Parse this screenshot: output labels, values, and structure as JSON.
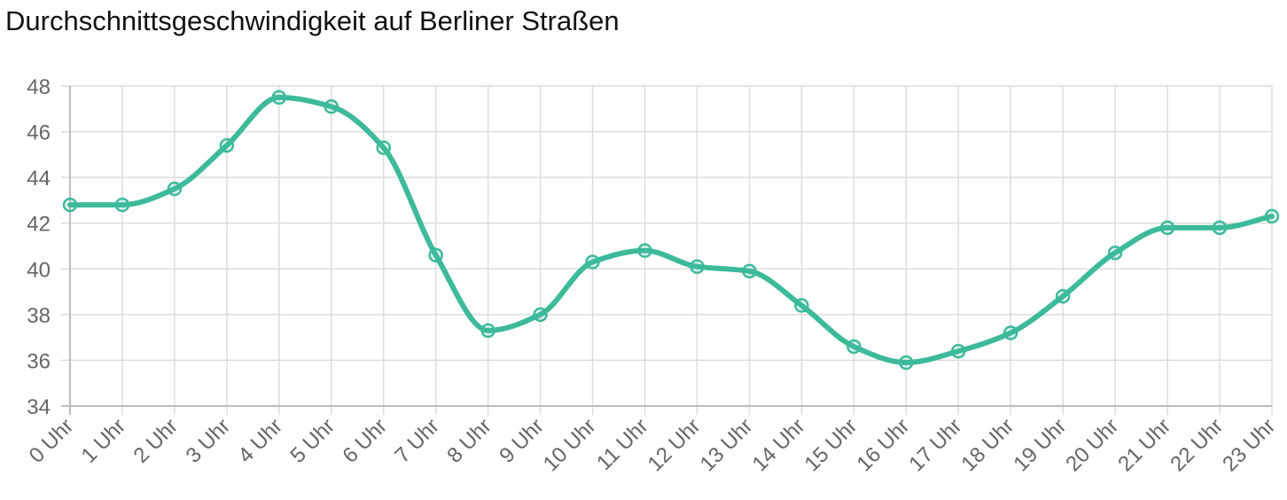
{
  "chart_data": {
    "type": "line",
    "title": "Durchschnittsgeschwindigkeit auf Berliner Straßen",
    "xlabel": "",
    "ylabel": "",
    "categories": [
      "0 Uhr",
      "1 Uhr",
      "2 Uhr",
      "3 Uhr",
      "4 Uhr",
      "5 Uhr",
      "6 Uhr",
      "7 Uhr",
      "8 Uhr",
      "9 Uhr",
      "10 Uhr",
      "11 Uhr",
      "12 Uhr",
      "13 Uhr",
      "14 Uhr",
      "15 Uhr",
      "16 Uhr",
      "17 Uhr",
      "18 Uhr",
      "19 Uhr",
      "20 Uhr",
      "21 Uhr",
      "22 Uhr",
      "23 Uhr"
    ],
    "series": [
      {
        "values": [
          42.8,
          42.8,
          43.5,
          45.4,
          47.5,
          47.1,
          45.3,
          40.6,
          37.3,
          38.0,
          40.3,
          40.8,
          40.1,
          39.9,
          38.4,
          36.6,
          35.9,
          36.4,
          37.2,
          38.8,
          40.7,
          41.8,
          41.8,
          42.3
        ]
      }
    ],
    "ylim": [
      34,
      48
    ],
    "yticks": [
      34,
      36,
      38,
      40,
      42,
      44,
      46,
      48
    ],
    "grid": true,
    "legend": "none",
    "colors": {
      "line": "#3dba9a",
      "grid": "#dcdcdc",
      "axis": "#bdbdbd",
      "tick_text": "#666666",
      "title": "#111111"
    }
  }
}
